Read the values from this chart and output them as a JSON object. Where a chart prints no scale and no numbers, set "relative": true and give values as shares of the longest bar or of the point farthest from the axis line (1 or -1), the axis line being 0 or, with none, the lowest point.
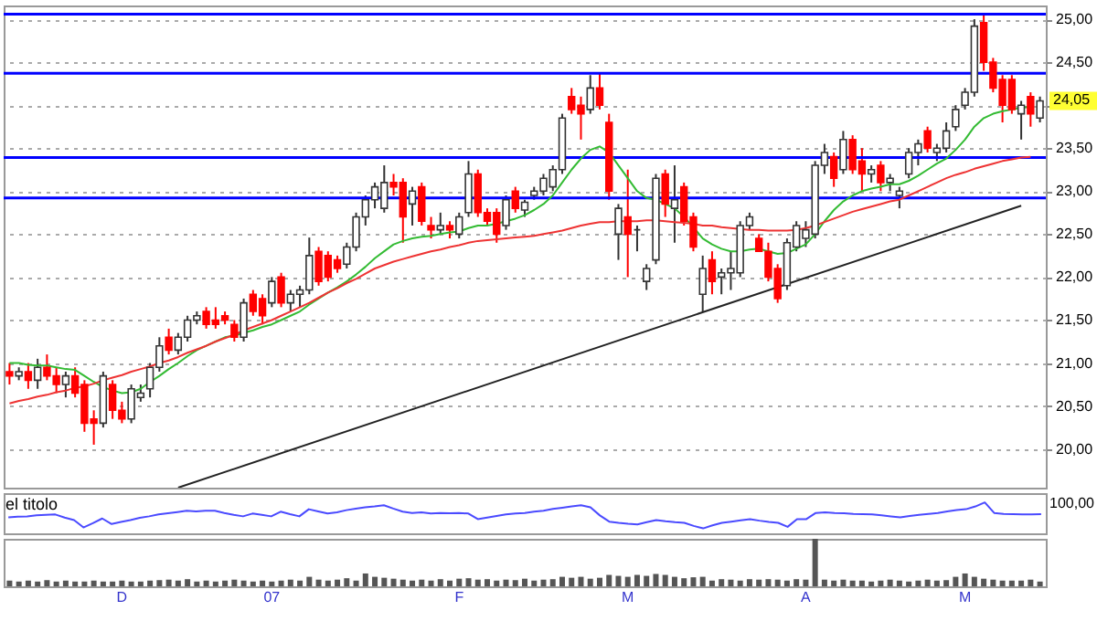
{
  "chart_data": [
    {
      "type": "candlestick",
      "tick_labels": "y",
      "grid": "y",
      "categories": [
        null,
        null,
        null,
        null,
        null,
        null,
        null,
        null,
        null,
        null,
        null,
        null,
        null,
        null,
        null,
        null,
        null,
        null,
        null,
        null,
        null,
        null,
        null,
        null,
        null,
        null,
        null,
        null,
        null,
        null,
        null,
        null,
        null,
        null,
        null,
        null,
        null,
        null,
        null,
        null,
        null,
        null,
        null,
        null,
        null,
        null,
        null,
        null,
        null,
        null,
        null,
        null,
        null,
        null,
        null,
        null,
        null,
        null,
        null,
        null,
        null,
        null,
        null,
        null,
        null,
        null,
        null,
        null,
        null,
        null,
        null,
        null,
        null,
        null,
        null,
        null,
        null,
        null,
        null,
        null,
        null,
        null,
        null,
        null,
        null,
        null,
        null,
        null,
        null,
        null,
        null,
        null,
        null,
        null,
        null,
        null,
        null,
        null,
        null,
        null,
        null,
        null,
        null,
        null,
        null,
        null,
        null,
        null,
        null,
        null,
        null
      ],
      "ohlc": [
        [
          20.9,
          21.0,
          20.75,
          20.85
        ],
        [
          20.85,
          20.95,
          20.8,
          20.9
        ],
        [
          20.9,
          21.0,
          20.7,
          20.8
        ],
        [
          20.8,
          21.05,
          20.7,
          20.95
        ],
        [
          20.95,
          21.1,
          20.8,
          20.85
        ],
        [
          20.85,
          20.95,
          20.65,
          20.75
        ],
        [
          20.75,
          20.9,
          20.6,
          20.85
        ],
        [
          20.85,
          20.95,
          20.6,
          20.65
        ],
        [
          20.75,
          20.8,
          20.2,
          20.3
        ],
        [
          20.35,
          20.45,
          20.05,
          20.3
        ],
        [
          20.3,
          20.9,
          20.25,
          20.85
        ],
        [
          20.75,
          20.8,
          20.35,
          20.45
        ],
        [
          20.45,
          20.55,
          20.3,
          20.35
        ],
        [
          20.35,
          20.75,
          20.3,
          20.7
        ],
        [
          20.6,
          20.75,
          20.55,
          20.65
        ],
        [
          20.7,
          21.0,
          20.6,
          20.95
        ],
        [
          20.95,
          21.3,
          20.9,
          21.2
        ],
        [
          21.3,
          21.4,
          21.1,
          21.15
        ],
        [
          21.15,
          21.35,
          21.1,
          21.3
        ],
        [
          21.3,
          21.55,
          21.25,
          21.5
        ],
        [
          21.5,
          21.6,
          21.45,
          21.55
        ],
        [
          21.6,
          21.65,
          21.4,
          21.45
        ],
        [
          21.5,
          21.65,
          21.4,
          21.45
        ],
        [
          21.55,
          21.6,
          21.45,
          21.5
        ],
        [
          21.45,
          21.5,
          21.25,
          21.3
        ],
        [
          21.3,
          21.75,
          21.25,
          21.7
        ],
        [
          21.8,
          21.85,
          21.55,
          21.6
        ],
        [
          21.75,
          21.8,
          21.45,
          21.55
        ],
        [
          21.7,
          22.0,
          21.65,
          21.95
        ],
        [
          22.0,
          22.05,
          21.65,
          21.7
        ],
        [
          21.7,
          21.85,
          21.6,
          21.8
        ],
        [
          21.8,
          21.9,
          21.65,
          21.85
        ],
        [
          21.85,
          22.46,
          21.8,
          22.25
        ],
        [
          22.3,
          22.35,
          21.9,
          21.95
        ],
        [
          22.25,
          22.3,
          21.95,
          22.0
        ],
        [
          22.2,
          22.25,
          22.05,
          22.1
        ],
        [
          22.15,
          22.4,
          22.1,
          22.35
        ],
        [
          22.35,
          22.75,
          22.3,
          22.7
        ],
        [
          22.7,
          22.95,
          22.6,
          22.9
        ],
        [
          22.9,
          23.1,
          22.8,
          23.05
        ],
        [
          22.8,
          23.3,
          22.75,
          23.1
        ],
        [
          23.1,
          23.2,
          22.95,
          23.05
        ],
        [
          23.1,
          23.15,
          22.4,
          22.7
        ],
        [
          22.85,
          23.05,
          22.6,
          23.0
        ],
        [
          23.05,
          23.1,
          22.6,
          22.65
        ],
        [
          22.6,
          22.7,
          22.45,
          22.55
        ],
        [
          22.55,
          22.75,
          22.5,
          22.6
        ],
        [
          22.6,
          22.65,
          22.45,
          22.55
        ],
        [
          22.5,
          22.75,
          22.45,
          22.7
        ],
        [
          22.75,
          23.35,
          22.7,
          23.2
        ],
        [
          23.2,
          23.25,
          22.7,
          22.75
        ],
        [
          22.75,
          22.8,
          22.6,
          22.65
        ],
        [
          22.75,
          22.8,
          22.4,
          22.5
        ],
        [
          22.6,
          22.95,
          22.55,
          22.9
        ],
        [
          23.0,
          23.05,
          22.75,
          22.8
        ],
        [
          22.78,
          22.9,
          22.7,
          22.87
        ],
        [
          22.95,
          23.05,
          22.9,
          23.0
        ],
        [
          23.0,
          23.2,
          22.95,
          23.15
        ],
        [
          23.05,
          23.3,
          23.0,
          23.25
        ],
        [
          23.25,
          23.9,
          23.2,
          23.85
        ],
        [
          24.1,
          24.2,
          23.9,
          23.95
        ],
        [
          24.0,
          24.1,
          23.6,
          23.9
        ],
        [
          23.95,
          24.35,
          23.9,
          24.2
        ],
        [
          24.2,
          24.37,
          23.95,
          24.0
        ],
        [
          23.8,
          23.9,
          22.9,
          23.0
        ],
        [
          22.5,
          22.85,
          22.2,
          22.8
        ],
        [
          22.7,
          23.25,
          22.0,
          22.5
        ],
        [
          22.55,
          22.6,
          22.3,
          22.55
        ],
        [
          21.95,
          22.15,
          21.85,
          22.1
        ],
        [
          22.2,
          23.2,
          22.15,
          23.15
        ],
        [
          23.2,
          23.25,
          22.7,
          22.85
        ],
        [
          22.8,
          23.3,
          22.4,
          22.9
        ],
        [
          23.05,
          23.1,
          22.6,
          22.65
        ],
        [
          22.7,
          22.75,
          22.3,
          22.35
        ],
        [
          21.8,
          22.25,
          21.6,
          22.1
        ],
        [
          22.2,
          22.3,
          21.8,
          21.95
        ],
        [
          22.0,
          22.1,
          21.8,
          22.05
        ],
        [
          22.05,
          22.3,
          21.85,
          22.1
        ],
        [
          22.05,
          22.65,
          22.0,
          22.6
        ],
        [
          22.6,
          22.75,
          22.55,
          22.7
        ],
        [
          22.45,
          22.5,
          22.3,
          22.3
        ],
        [
          22.3,
          22.4,
          21.95,
          22.0
        ],
        [
          22.1,
          22.15,
          21.7,
          21.75
        ],
        [
          21.9,
          22.45,
          21.85,
          22.4
        ],
        [
          22.35,
          22.65,
          22.3,
          22.6
        ],
        [
          22.45,
          22.65,
          22.35,
          22.55
        ],
        [
          22.5,
          23.35,
          22.45,
          23.3
        ],
        [
          23.3,
          23.55,
          23.2,
          23.45
        ],
        [
          23.4,
          23.45,
          23.05,
          23.15
        ],
        [
          23.25,
          23.7,
          23.2,
          23.6
        ],
        [
          23.6,
          23.65,
          23.2,
          23.25
        ],
        [
          23.35,
          23.5,
          23.0,
          23.2
        ],
        [
          23.2,
          23.3,
          23.1,
          23.25
        ],
        [
          23.3,
          23.35,
          23.0,
          23.1
        ],
        [
          23.1,
          23.2,
          23.0,
          23.15
        ],
        [
          22.95,
          23.05,
          22.8,
          23.0
        ],
        [
          23.2,
          23.5,
          23.15,
          23.45
        ],
        [
          23.45,
          23.6,
          23.3,
          23.55
        ],
        [
          23.7,
          23.75,
          23.45,
          23.5
        ],
        [
          23.45,
          23.55,
          23.35,
          23.5
        ],
        [
          23.5,
          23.8,
          23.45,
          23.7
        ],
        [
          23.75,
          24.0,
          23.7,
          23.95
        ],
        [
          24.0,
          24.2,
          23.95,
          24.15
        ],
        [
          24.15,
          25.0,
          24.1,
          24.92
        ],
        [
          24.96,
          25.05,
          24.4,
          24.5
        ],
        [
          24.5,
          24.55,
          24.15,
          24.2
        ],
        [
          24.3,
          24.35,
          23.8,
          24.0
        ],
        [
          24.3,
          24.35,
          23.9,
          23.95
        ],
        [
          23.9,
          24.05,
          23.6,
          24.0
        ],
        [
          24.1,
          24.15,
          23.75,
          23.9
        ],
        [
          23.85,
          24.1,
          23.8,
          24.05
        ]
      ],
      "series": [
        {
          "type": "line",
          "color": "#33bb33",
          "values": [
            21.0,
            21.0,
            20.98,
            20.97,
            20.97,
            20.95,
            20.93,
            20.92,
            20.85,
            20.78,
            20.72,
            20.68,
            20.65,
            20.66,
            20.7,
            20.78,
            20.85,
            20.93,
            21.0,
            21.08,
            21.15,
            21.2,
            21.25,
            21.3,
            21.32,
            21.35,
            21.38,
            21.42,
            21.45,
            21.5,
            21.55,
            21.6,
            21.68,
            21.75,
            21.82,
            21.88,
            21.95,
            22.03,
            22.12,
            22.22,
            22.3,
            22.38,
            22.42,
            22.45,
            22.47,
            22.48,
            22.5,
            22.52,
            22.53,
            22.57,
            22.6,
            22.6,
            22.62,
            22.65,
            22.68,
            22.72,
            22.78,
            22.85,
            22.95,
            23.1,
            23.25,
            23.38,
            23.48,
            23.52,
            23.45,
            23.3,
            23.15,
            23.0,
            22.92,
            22.9,
            22.85,
            22.8,
            22.7,
            22.58,
            22.45,
            22.38,
            22.33,
            22.3,
            22.3,
            22.32,
            22.33,
            22.3,
            22.27,
            22.28,
            22.33,
            22.38,
            22.5,
            22.65,
            22.78,
            22.88,
            22.95,
            23.0,
            23.03,
            23.05,
            23.08,
            23.08,
            23.12,
            23.18,
            23.25,
            23.32,
            23.38,
            23.48,
            23.6,
            23.75,
            23.85,
            23.9,
            23.93,
            23.95,
            23.97,
            23.98,
            null
          ]
        },
        {
          "type": "line",
          "color": "#ee3333",
          "values": [
            20.53,
            20.56,
            20.58,
            20.61,
            20.63,
            20.66,
            20.68,
            20.71,
            20.73,
            20.76,
            20.8,
            20.83,
            20.86,
            20.9,
            20.93,
            20.96,
            21.0,
            21.03,
            21.07,
            21.12,
            21.16,
            21.2,
            21.25,
            21.29,
            21.33,
            21.38,
            21.42,
            21.46,
            21.5,
            21.55,
            21.6,
            21.65,
            21.7,
            21.76,
            21.82,
            21.87,
            21.93,
            21.98,
            22.04,
            22.1,
            22.14,
            22.18,
            22.21,
            22.24,
            22.27,
            22.3,
            22.32,
            22.35,
            22.37,
            22.4,
            22.42,
            22.43,
            22.44,
            22.45,
            22.46,
            22.47,
            22.48,
            22.5,
            22.52,
            22.54,
            22.57,
            22.6,
            22.62,
            22.64,
            22.64,
            22.65,
            22.65,
            22.65,
            22.66,
            22.66,
            22.65,
            22.64,
            22.63,
            22.62,
            22.6,
            22.6,
            22.58,
            22.57,
            22.56,
            22.55,
            22.55,
            22.54,
            22.54,
            22.54,
            22.55,
            22.57,
            22.6,
            22.64,
            22.68,
            22.72,
            22.76,
            22.79,
            22.82,
            22.85,
            22.88,
            22.9,
            22.95,
            23.0,
            23.05,
            23.1,
            23.15,
            23.19,
            23.22,
            23.26,
            23.29,
            23.32,
            23.35,
            23.37,
            23.39,
            23.4,
            null
          ]
        },
        {
          "type": "line",
          "color": "#222222",
          "values": [
            null,
            null,
            null,
            null,
            null,
            null,
            null,
            null,
            null,
            null,
            null,
            null,
            null,
            null,
            null,
            null,
            null,
            null,
            19.55,
            null,
            null,
            null,
            null,
            null,
            null,
            null,
            null,
            null,
            null,
            null,
            null,
            null,
            null,
            null,
            null,
            null,
            null,
            null,
            null,
            null,
            null,
            null,
            null,
            null,
            null,
            null,
            null,
            null,
            null,
            null,
            null,
            null,
            null,
            null,
            null,
            null,
            null,
            null,
            null,
            null,
            null,
            null,
            null,
            null,
            null,
            null,
            null,
            null,
            null,
            null,
            null,
            null,
            null,
            null,
            null,
            null,
            null,
            null,
            null,
            null,
            null,
            null,
            null,
            null,
            null,
            null,
            null,
            null,
            null,
            null,
            null,
            null,
            null,
            null,
            null,
            null,
            null,
            null,
            null,
            null,
            null,
            null,
            null,
            null,
            null,
            null,
            null,
            null,
            22.83,
            null,
            null
          ]
        }
      ],
      "ylim": [
        19.55,
        25.16
      ],
      "yticks": [
        {
          "value": 20,
          "label": "20,00"
        },
        {
          "value": 20.5,
          "label": "20,50"
        },
        {
          "value": 21,
          "label": "21,00"
        },
        {
          "value": 21.5,
          "label": "21,50"
        },
        {
          "value": 22,
          "label": "22,00"
        },
        {
          "value": 22.5,
          "label": "22,50"
        },
        {
          "value": 23,
          "label": "23,00"
        },
        {
          "value": 23.5,
          "label": "23,50"
        },
        {
          "value": 24,
          "label": null
        },
        {
          "value": 24.5,
          "label": "24,50"
        },
        {
          "value": 25,
          "label": "25,00"
        }
      ],
      "ref_lines": [
        {
          "axis": "y",
          "value": 25.06,
          "color": "#0000ff"
        },
        {
          "axis": "y",
          "value": 24.37,
          "color": "#0000ff"
        },
        {
          "axis": "y",
          "value": 23.39,
          "color": "#0000ff"
        },
        {
          "axis": "y",
          "value": 22.92,
          "color": "#0000ff"
        }
      ],
      "annotations": [
        {
          "text": "24,05",
          "y": 24.05
        }
      ]
    },
    {
      "type": "line",
      "relative": true,
      "tick_labels": false,
      "title": "el titolo",
      "categories": [
        null,
        null,
        null,
        null,
        null,
        null,
        null,
        null,
        null,
        null,
        null,
        null,
        null,
        null,
        null,
        null,
        null,
        null,
        null,
        null,
        null,
        null,
        null,
        null,
        null,
        null,
        null,
        null,
        null,
        null,
        null,
        null,
        null,
        null,
        null,
        null,
        null,
        null,
        null,
        null,
        null,
        null,
        null,
        null,
        null,
        null,
        null,
        null,
        null,
        null,
        null,
        null,
        null,
        null,
        null,
        null,
        null,
        null,
        null,
        null,
        null,
        null,
        null,
        null,
        null,
        null,
        null,
        null,
        null,
        null,
        null,
        null,
        null,
        null,
        null,
        null,
        null,
        null,
        null,
        null,
        null,
        null,
        null,
        null,
        null,
        null,
        null,
        null,
        null,
        null,
        null,
        null,
        null,
        null,
        null,
        null,
        null,
        null,
        null,
        null,
        null,
        null,
        null,
        null,
        null,
        null,
        null,
        null,
        null,
        null,
        null
      ],
      "series": [
        {
          "type": "line",
          "color": "#4a4aff",
          "values": [
            0.52,
            0.54,
            0.55,
            0.58,
            0.6,
            0.61,
            0.51,
            0.43,
            0.19,
            0.33,
            0.48,
            0.3,
            0.37,
            0.43,
            0.5,
            0.55,
            0.61,
            0.65,
            0.69,
            0.73,
            0.71,
            0.73,
            0.73,
            0.66,
            0.6,
            0.55,
            0.64,
            0.6,
            0.55,
            0.7,
            0.62,
            0.55,
            0.78,
            0.71,
            0.64,
            0.68,
            0.75,
            0.8,
            0.84,
            0.87,
            0.91,
            0.8,
            0.7,
            0.66,
            0.68,
            0.64,
            0.66,
            0.65,
            0.66,
            0.64,
            0.46,
            0.51,
            0.56,
            0.61,
            0.64,
            0.66,
            0.7,
            0.73,
            0.79,
            0.83,
            0.87,
            0.91,
            0.84,
            0.58,
            0.38,
            0.34,
            0.31,
            0.29,
            0.36,
            0.43,
            0.39,
            0.36,
            0.34,
            0.24,
            0.16,
            0.26,
            0.34,
            0.38,
            0.42,
            0.46,
            0.41,
            0.37,
            0.34,
            0.21,
            0.46,
            0.46,
            0.66,
            0.68,
            0.66,
            0.65,
            0.63,
            0.62,
            0.61,
            0.58,
            0.55,
            0.52,
            0.56,
            0.6,
            0.63,
            0.66,
            0.71,
            0.75,
            0.78,
            0.87,
            1,
            0.66,
            0.63,
            0.62,
            0.61,
            0.61,
            0.62
          ]
        }
      ],
      "annotations": [
        "100,00"
      ]
    },
    {
      "type": "bar",
      "relative": true,
      "tick_labels": "x",
      "categories": [
        null,
        null,
        null,
        null,
        null,
        null,
        null,
        null,
        null,
        null,
        null,
        null,
        "D",
        null,
        null,
        null,
        null,
        null,
        null,
        null,
        null,
        null,
        null,
        null,
        null,
        null,
        null,
        null,
        "07",
        null,
        null,
        null,
        null,
        null,
        null,
        null,
        null,
        null,
        null,
        null,
        null,
        null,
        null,
        null,
        null,
        null,
        null,
        null,
        "F",
        null,
        null,
        null,
        null,
        null,
        null,
        null,
        null,
        null,
        null,
        null,
        null,
        null,
        null,
        null,
        null,
        null,
        "M",
        null,
        null,
        null,
        null,
        null,
        null,
        null,
        null,
        null,
        null,
        null,
        null,
        null,
        null,
        null,
        null,
        null,
        null,
        "A",
        null,
        null,
        null,
        null,
        null,
        null,
        null,
        null,
        null,
        null,
        null,
        null,
        null,
        null,
        null,
        null,
        "M",
        null,
        null,
        null,
        null,
        null,
        null,
        null,
        null
      ],
      "series": [
        {
          "type": "bar",
          "color": "#555555",
          "values": [
            0.12,
            0.1,
            0.12,
            0.1,
            0.13,
            0.1,
            0.12,
            0.1,
            0.1,
            0.12,
            0.1,
            0.1,
            0.12,
            0.1,
            0.1,
            0.12,
            0.13,
            0.14,
            0.12,
            0.15,
            0.1,
            0.12,
            0.1,
            0.12,
            0.14,
            0.12,
            0.1,
            0.12,
            0.1,
            0.12,
            0.14,
            0.12,
            0.2,
            0.14,
            0.12,
            0.14,
            0.17,
            0.12,
            0.27,
            0.2,
            0.18,
            0.16,
            0.14,
            0.12,
            0.14,
            0.12,
            0.15,
            0.12,
            0.16,
            0.17,
            0.14,
            0.15,
            0.12,
            0.14,
            0.13,
            0.16,
            0.12,
            0.14,
            0.15,
            0.2,
            0.18,
            0.2,
            0.16,
            0.18,
            0.24,
            0.22,
            0.2,
            0.24,
            0.22,
            0.26,
            0.24,
            0.2,
            0.17,
            0.19,
            0.2,
            0.12,
            0.15,
            0.14,
            0.12,
            0.15,
            0.14,
            0.15,
            0.14,
            0.12,
            0.15,
            0.14,
            1,
            0.14,
            0.12,
            0.14,
            0.12,
            0.12,
            0.1,
            0.12,
            0.14,
            0.12,
            0.1,
            0.12,
            0.14,
            0.12,
            0.13,
            0.2,
            0.27,
            0.2,
            0.16,
            0.14,
            0.12,
            0.12,
            0.12,
            0.14,
            0.1
          ]
        }
      ]
    }
  ]
}
